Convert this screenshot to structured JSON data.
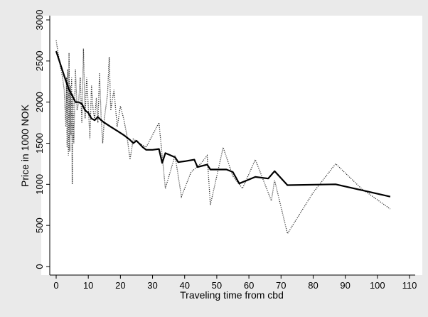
{
  "chart_data": {
    "type": "line",
    "title": "",
    "xlabel": "Traveling time from cbd",
    "ylabel": "Price in 1000 NOK",
    "xlim": [
      0,
      110
    ],
    "ylim": [
      0,
      3000
    ],
    "x_ticks": [
      0,
      10,
      20,
      30,
      40,
      50,
      60,
      70,
      80,
      90,
      100,
      110
    ],
    "y_ticks": [
      0,
      500,
      1000,
      1500,
      2000,
      2500,
      3000
    ],
    "grid": false,
    "legend": "none",
    "series": [
      {
        "style": "dotted",
        "color": "#333333",
        "points": [
          [
            0,
            2750
          ],
          [
            1,
            2500
          ],
          [
            2,
            2300
          ],
          [
            2.5,
            2150
          ],
          [
            3,
            1700
          ],
          [
            3.2,
            2300
          ],
          [
            3.4,
            1450
          ],
          [
            3.6,
            2400
          ],
          [
            3.8,
            1350
          ],
          [
            4,
            2600
          ],
          [
            4.2,
            1400
          ],
          [
            4.4,
            2200
          ],
          [
            4.6,
            1600
          ],
          [
            4.8,
            2300
          ],
          [
            5,
            1000
          ],
          [
            5.2,
            2100
          ],
          [
            5.5,
            1500
          ],
          [
            6,
            2400
          ],
          [
            6.5,
            1900
          ],
          [
            7,
            2000
          ],
          [
            7.5,
            2300
          ],
          [
            8,
            1750
          ],
          [
            8.5,
            2650
          ],
          [
            9,
            1800
          ],
          [
            9.5,
            2300
          ],
          [
            10,
            1950
          ],
          [
            10.5,
            1550
          ],
          [
            11,
            2200
          ],
          [
            11.5,
            1900
          ],
          [
            12,
            1800
          ],
          [
            12.5,
            2050
          ],
          [
            13,
            1750
          ],
          [
            13.5,
            2350
          ],
          [
            14,
            1800
          ],
          [
            14.5,
            1500
          ],
          [
            15,
            1800
          ],
          [
            16,
            2100
          ],
          [
            16.5,
            2550
          ],
          [
            17,
            1900
          ],
          [
            18,
            2150
          ],
          [
            19,
            1700
          ],
          [
            20,
            1950
          ],
          [
            21,
            1800
          ],
          [
            22,
            1600
          ],
          [
            23,
            1300
          ],
          [
            24,
            1550
          ],
          [
            26,
            1500
          ],
          [
            28,
            1450
          ],
          [
            32,
            1750
          ],
          [
            34,
            950
          ],
          [
            37,
            1350
          ],
          [
            39,
            850
          ],
          [
            42,
            1150
          ],
          [
            45,
            1250
          ],
          [
            47,
            1350
          ],
          [
            48,
            750
          ],
          [
            52,
            1450
          ],
          [
            55,
            1100
          ],
          [
            58,
            950
          ],
          [
            62,
            1300
          ],
          [
            65,
            1000
          ],
          [
            67,
            800
          ],
          [
            68,
            1050
          ],
          [
            72,
            400
          ],
          [
            80,
            900
          ],
          [
            87,
            1250
          ],
          [
            95,
            950
          ],
          [
            104,
            700
          ]
        ]
      },
      {
        "style": "solid",
        "color": "#000000",
        "points": [
          [
            0,
            2620
          ],
          [
            1,
            2500
          ],
          [
            2,
            2380
          ],
          [
            3,
            2260
          ],
          [
            4,
            2150
          ],
          [
            5,
            2080
          ],
          [
            6,
            2000
          ],
          [
            7,
            2000
          ],
          [
            8,
            1980
          ],
          [
            9,
            1900
          ],
          [
            10,
            1870
          ],
          [
            11,
            1800
          ],
          [
            12,
            1780
          ],
          [
            13,
            1820
          ],
          [
            14,
            1780
          ],
          [
            15,
            1750
          ],
          [
            17,
            1700
          ],
          [
            19,
            1650
          ],
          [
            21,
            1600
          ],
          [
            23,
            1540
          ],
          [
            24,
            1500
          ],
          [
            25,
            1530
          ],
          [
            27,
            1450
          ],
          [
            28,
            1420
          ],
          [
            30,
            1420
          ],
          [
            32,
            1430
          ],
          [
            33,
            1260
          ],
          [
            34,
            1380
          ],
          [
            37,
            1330
          ],
          [
            38,
            1270
          ],
          [
            40,
            1280
          ],
          [
            43,
            1300
          ],
          [
            44,
            1210
          ],
          [
            47,
            1240
          ],
          [
            48,
            1180
          ],
          [
            53,
            1180
          ],
          [
            55,
            1150
          ],
          [
            57,
            1010
          ],
          [
            62,
            1090
          ],
          [
            66,
            1070
          ],
          [
            68,
            1160
          ],
          [
            72,
            990
          ],
          [
            87,
            1000
          ],
          [
            104,
            850
          ]
        ]
      }
    ]
  }
}
